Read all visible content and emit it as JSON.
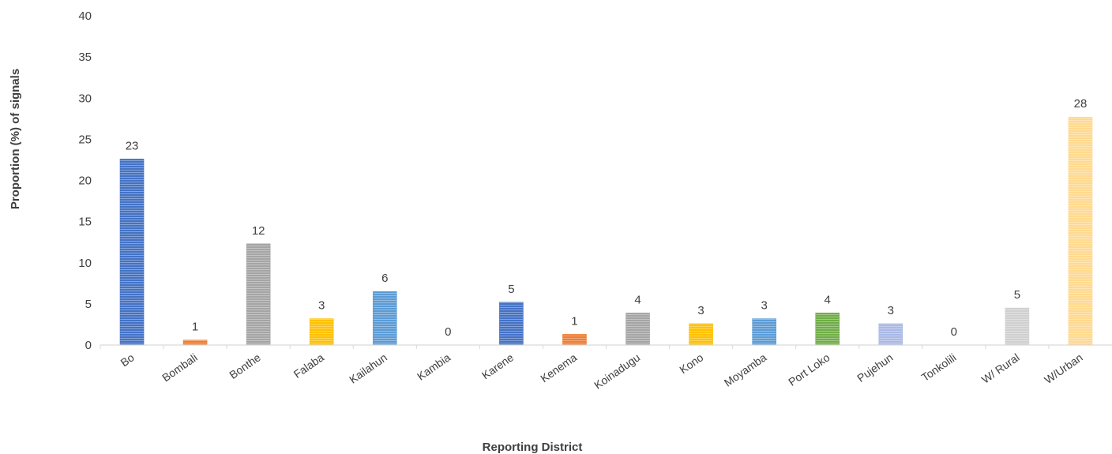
{
  "chart_data": {
    "type": "bar",
    "title": "",
    "xlabel": "Reporting District",
    "ylabel": "Proportion (%) of signals",
    "ylim": [
      0,
      40
    ],
    "yticks": [
      0,
      5,
      10,
      15,
      20,
      25,
      30,
      35,
      40
    ],
    "grid": false,
    "legend": "none",
    "categories": [
      "Bo",
      "Bombali",
      "Bonthe",
      "Falaba",
      "Kailahun",
      "Kambia",
      "Karene",
      "Kenema",
      "Koinadugu",
      "Kono",
      "Moyamba",
      "Port Loko",
      "Pujehun",
      "Tonkolili",
      "W/ Rural",
      "W/Urban"
    ],
    "values": [
      22.6,
      0.6,
      12.3,
      3.2,
      6.5,
      0,
      5.2,
      1.3,
      3.9,
      2.6,
      3.2,
      3.9,
      2.6,
      0,
      4.5,
      27.7
    ],
    "data_labels": [
      "23",
      "1",
      "12",
      "3",
      "6",
      "0",
      "5",
      "1",
      "4",
      "3",
      "3",
      "4",
      "3",
      "0",
      "5",
      "28"
    ],
    "colors": [
      "#4472C4",
      "#ED7D31",
      "#A5A5A5",
      "#FFC000",
      "#5B9BD5",
      "#70AD47",
      "#4472C4",
      "#ED7D31",
      "#A5A5A5",
      "#FFC000",
      "#5B9BD5",
      "#70AD47",
      "#A9B9E6",
      "#F4B183",
      "#D0D0D0",
      "#FFD98E"
    ]
  }
}
